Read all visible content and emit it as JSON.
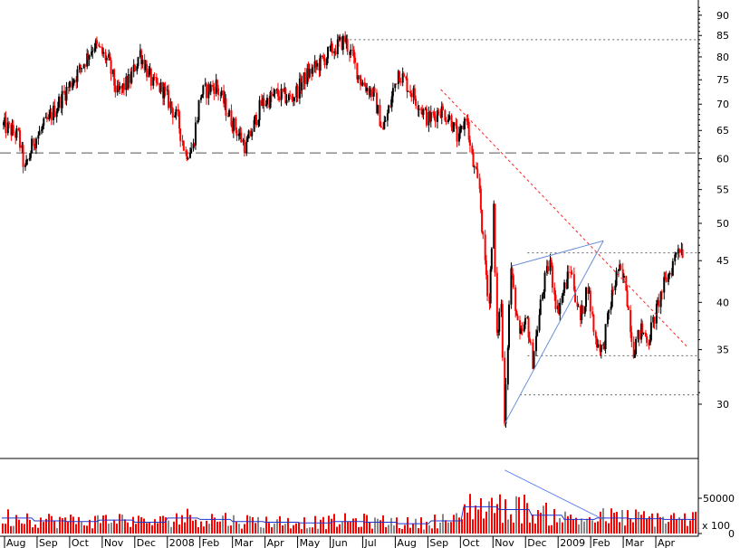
{
  "chart_data": [
    {
      "type": "candlestick",
      "panel": "price",
      "x_axis_ticks": [
        "Aug",
        "Sep",
        "Oct",
        "Nov",
        "Dec",
        "2008",
        "Feb",
        "Mar",
        "Apr",
        "May",
        "Jun",
        "Jul",
        "Aug",
        "Sep",
        "Oct",
        "Nov",
        "Dec",
        "2009",
        "Feb",
        "Mar",
        "Apr"
      ],
      "y_axis_ticks": [
        30,
        35,
        40,
        45,
        50,
        55,
        60,
        65,
        70,
        75,
        80,
        85,
        90
      ],
      "y_scale": "log",
      "ylim": [
        26,
        93
      ],
      "bar_colors": {
        "up": "#000000",
        "down": "#ff0000"
      },
      "series": [
        {
          "name": "",
          "x": [
            "2007-07-27",
            "2007-08-10",
            "2007-08-16",
            "2007-08-24",
            "2007-09-07",
            "2007-09-21",
            "2007-10-05",
            "2007-10-19",
            "2007-11-01",
            "2007-11-09",
            "2007-11-21",
            "2007-11-30",
            "2007-12-12",
            "2007-12-21",
            "2008-01-04",
            "2008-01-11",
            "2008-01-18",
            "2008-01-25",
            "2008-02-08",
            "2008-02-22",
            "2008-03-07",
            "2008-03-14",
            "2008-03-21",
            "2008-04-04",
            "2008-04-18",
            "2008-05-02",
            "2008-05-16",
            "2008-05-23",
            "2008-06-06",
            "2008-06-13",
            "2008-06-20",
            "2008-07-02",
            "2008-07-11",
            "2008-07-18",
            "2008-07-25",
            "2008-08-08",
            "2008-08-22",
            "2008-09-02",
            "2008-09-12",
            "2008-09-19",
            "2008-09-26",
            "2008-10-01",
            "2008-10-08",
            "2008-10-13",
            "2008-10-17",
            "2008-10-21",
            "2008-10-24",
            "2008-10-28",
            "2008-10-31",
            "2008-11-06",
            "2008-11-14",
            "2008-11-21",
            "2008-11-26",
            "2008-12-05",
            "2008-12-12",
            "2008-12-19",
            "2008-12-31",
            "2009-01-09",
            "2009-01-16",
            "2009-01-23",
            "2009-01-30",
            "2009-02-06",
            "2009-02-13",
            "2009-02-20",
            "2009-02-27",
            "2009-03-06",
            "2009-03-13",
            "2009-03-20",
            "2009-03-27",
            "2009-04-03",
            "2009-04-09",
            "2009-04-15"
          ],
          "y": [
            66,
            64,
            58,
            63,
            67,
            72,
            77,
            83,
            79,
            72,
            75,
            81,
            74,
            73,
            67,
            61,
            62,
            72,
            74,
            67,
            62,
            66,
            70,
            72,
            71,
            76,
            79,
            81,
            84,
            80,
            75,
            72,
            65,
            70,
            77,
            72,
            67,
            69,
            67,
            63,
            68,
            60,
            55,
            45,
            40,
            52,
            36,
            40,
            29,
            44,
            36,
            38,
            34,
            41,
            45,
            39,
            44,
            38,
            42,
            36,
            35,
            40,
            44,
            42,
            35,
            37,
            36,
            39,
            42,
            44,
            47,
            46
          ]
        }
      ],
      "trendlines": [
        {
          "style": "red-dotted",
          "from": {
            "x": "2008-09-02",
            "y": 73
          },
          "to": {
            "x": "2009-04-17",
            "y": 35.3
          }
        },
        {
          "style": "blue-solid",
          "from": {
            "x": "2008-10-31",
            "y": 28.4
          },
          "to": {
            "x": "2009-01-30",
            "y": 47.6
          }
        },
        {
          "style": "blue-solid",
          "from": {
            "x": "2008-11-06",
            "y": 44.3
          },
          "to": {
            "x": "2009-01-30",
            "y": 47.6
          }
        }
      ],
      "horizontal_lines": [
        {
          "style": "dashed",
          "y": 61
        },
        {
          "style": "dotted",
          "y": 84,
          "from": "2008-06-06"
        },
        {
          "style": "dotted",
          "y": 46,
          "from": "2008-11-21"
        },
        {
          "style": "dotted",
          "y": 34.4,
          "from": "2008-11-21"
        },
        {
          "style": "dotted",
          "y": 30.8,
          "from": "2008-11-14"
        }
      ]
    },
    {
      "type": "bar",
      "panel": "volume",
      "y_axis_ticks": [
        0,
        50000
      ],
      "ylim": [
        0,
        100000
      ],
      "scale_note": "x 100",
      "series": [
        {
          "name": "",
          "x": [
            "Aug",
            "Sep",
            "Oct",
            "Nov",
            "Dec",
            "2008",
            "Feb",
            "Mar",
            "Apr",
            "May",
            "Jun",
            "Jul",
            "Aug",
            "Sep",
            "Oct",
            "Nov",
            "Dec",
            "2009",
            "Feb",
            "Mar",
            "Apr"
          ],
          "values": [
            22000,
            18000,
            17000,
            19000,
            16000,
            22000,
            20000,
            17000,
            16000,
            15000,
            17000,
            16000,
            14000,
            18000,
            38000,
            34000,
            26000,
            20000,
            22000,
            21000,
            20000
          ]
        }
      ]
    }
  ]
}
